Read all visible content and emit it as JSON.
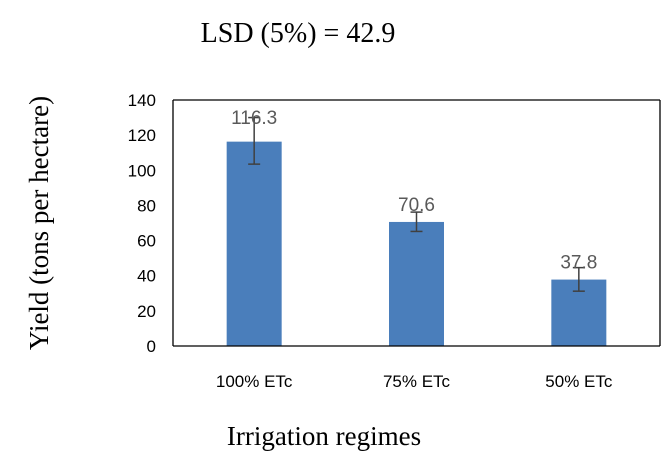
{
  "chart_data": {
    "type": "bar",
    "title": "LSD  (5%) = 42.9",
    "xlabel": "Irrigation regimes",
    "ylabel": "Yield (tons per hectare)",
    "categories": [
      "100% ETc",
      "75% ETc",
      "50% ETc"
    ],
    "values": [
      116.3,
      70.6,
      37.8
    ],
    "data_labels": [
      "116.3",
      "70.6",
      "37.8"
    ],
    "error_low": [
      103.5,
      65.2,
      31.2
    ],
    "error_high": [
      130.0,
      76.2,
      44.6
    ],
    "ylim": [
      0,
      140
    ],
    "yticks": [
      0,
      20,
      40,
      60,
      80,
      100,
      120,
      140
    ],
    "grid": false,
    "legend": "none",
    "colors": {
      "bar": "#4a7ebb",
      "error_bar": "#404040",
      "data_label": "#595959",
      "axis": "#000000"
    }
  }
}
